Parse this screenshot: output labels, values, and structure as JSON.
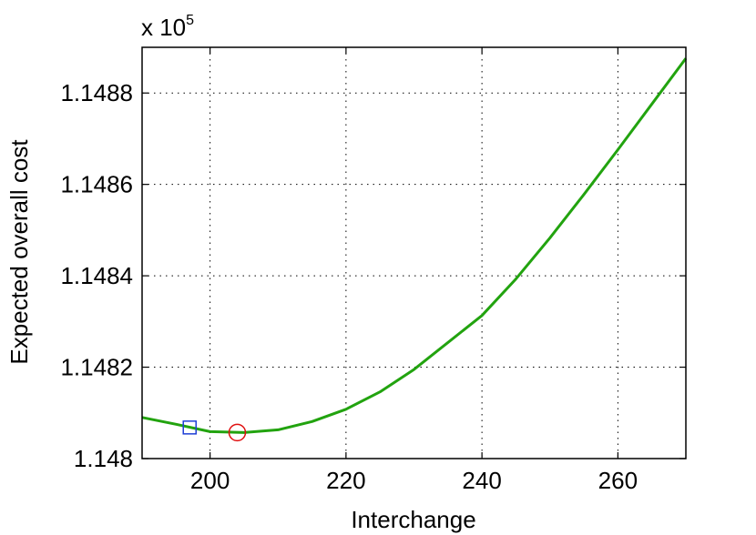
{
  "chart_data": {
    "type": "line",
    "title": "",
    "xlabel": "Interchange",
    "ylabel": "Expected overall cost",
    "y_multiplier_label": "x 10",
    "y_multiplier_exponent": "5",
    "xlim": [
      190,
      270
    ],
    "ylim": [
      1.148,
      1.1489
    ],
    "xticks": [
      200,
      220,
      240,
      260
    ],
    "xtick_labels": [
      "200",
      "220",
      "240",
      "260"
    ],
    "yticks": [
      1.148,
      1.1482,
      1.1484,
      1.1486,
      1.1488
    ],
    "ytick_labels": [
      "1.148",
      "1.1482",
      "1.1484",
      "1.1486",
      "1.1488"
    ],
    "grid": true,
    "series": [
      {
        "color": "#22a30f",
        "x": [
          190,
          195,
          200,
          205,
          210,
          215,
          220,
          225,
          230,
          235,
          240,
          245,
          250,
          255,
          260,
          265,
          270
        ],
        "y": [
          1.14809,
          1.148075,
          1.148059,
          1.148057,
          1.148063,
          1.148081,
          1.148108,
          1.148146,
          1.148195,
          1.148254,
          1.148313,
          1.148393,
          1.148483,
          1.148578,
          1.148676,
          1.148776,
          1.148876
        ]
      }
    ],
    "markers": [
      {
        "shape": "square",
        "color": "#1f3fd6",
        "x": 197,
        "y": 1.148068
      },
      {
        "shape": "circle",
        "color": "#e01010",
        "x": 204,
        "y": 1.148057
      }
    ]
  }
}
